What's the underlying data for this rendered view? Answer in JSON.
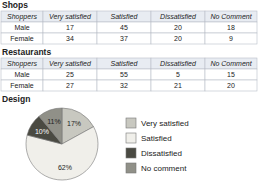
{
  "chart_data": [
    {
      "type": "table",
      "title": "Shops",
      "header": "Shoppers",
      "categories": [
        "Very satisfied",
        "Satisfied",
        "Dissatisfied",
        "No Comment"
      ],
      "series": [
        {
          "name": "Male",
          "values": [
            17,
            45,
            20,
            18
          ]
        },
        {
          "name": "Female",
          "values": [
            34,
            37,
            20,
            9
          ]
        }
      ]
    },
    {
      "type": "table",
      "title": "Restaurants",
      "header": "Shoppers",
      "categories": [
        "Very satisfied",
        "Satisfied",
        "Dissatisfied",
        "No Comment"
      ],
      "series": [
        {
          "name": "Male",
          "values": [
            25,
            55,
            5,
            15
          ]
        },
        {
          "name": "Female",
          "values": [
            27,
            32,
            21,
            20
          ]
        }
      ]
    },
    {
      "type": "pie",
      "title": "Design",
      "categories": [
        "Very satisfied",
        "Satisfied",
        "Dissatisfied",
        "No comment"
      ],
      "values": [
        17,
        62,
        10,
        11
      ],
      "value_labels": [
        "17%",
        "62%",
        "10%",
        "11%"
      ],
      "colors": [
        "#c8c8c0",
        "#f0efea",
        "#4a4a42",
        "#909088"
      ],
      "data_labels": true,
      "legend": "right"
    }
  ]
}
